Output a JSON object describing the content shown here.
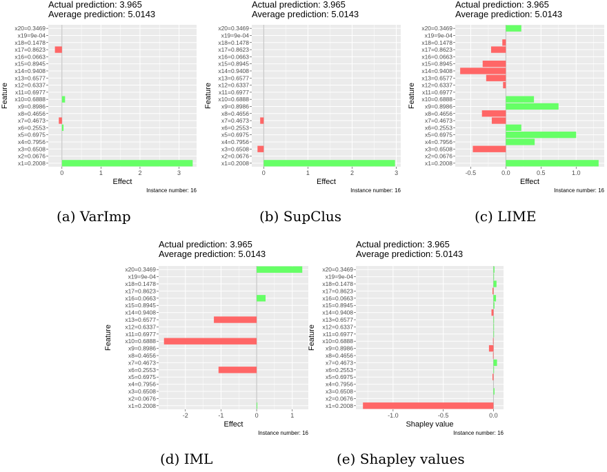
{
  "chart_data": [
    {
      "id": "a",
      "type": "bar",
      "title_lines": [
        "Actual prediction: 3.965",
        "Average prediction: 5.0143"
      ],
      "xlabel": "Effect",
      "ylabel": "Feature",
      "caption": "(a) VarImp",
      "instance_note": "Instance number: 16",
      "xlim": [
        -0.35,
        3.45
      ],
      "xticks": [
        0,
        1,
        2,
        3
      ],
      "xtick_labels": [
        "0",
        "1",
        "2",
        "3"
      ],
      "categories": [
        "x1=0.2008",
        "x2=0.0676",
        "x3=0.6508",
        "x4=0.7956",
        "x5=0.6975",
        "x6=0.2553",
        "x7=0.4673",
        "x8=0.4656",
        "x9=0.8986",
        "x10=0.6888",
        "x11=0.6977",
        "x12=0.6337",
        "x13=0.6577",
        "x14=0.9408",
        "x15=0.8945",
        "x16=0.0663",
        "x17=0.8623",
        "x18=0.1478",
        "x19=9e-04",
        "x20=0.3469"
      ],
      "values": [
        3.35,
        0,
        0,
        0,
        0,
        0.04,
        -0.08,
        0,
        0,
        0.08,
        0,
        0,
        0,
        0,
        0,
        0,
        -0.18,
        0,
        0,
        0
      ]
    },
    {
      "id": "b",
      "type": "bar",
      "title_lines": [
        "Actual prediction: 3.965",
        "Average prediction: 5.0143"
      ],
      "xlabel": "Effect",
      "ylabel": "Feature",
      "caption": "(b) SupClus",
      "instance_note": "Instance number: 16",
      "xlim": [
        -0.27,
        3.1
      ],
      "xticks": [
        0,
        1,
        2,
        3
      ],
      "xtick_labels": [
        "0",
        "1",
        "2",
        "3"
      ],
      "categories": [
        "x1=0.2008",
        "x2=0.0676",
        "x3=0.6508",
        "x4=0.7956",
        "x5=0.6975",
        "x6=0.2553",
        "x7=0.4673",
        "x8=0.4656",
        "x9=0.8986",
        "x10=0.6888",
        "x11=0.6977",
        "x12=0.6337",
        "x13=0.6577",
        "x14=0.9408",
        "x15=0.8945",
        "x16=0.0663",
        "x17=0.8623",
        "x18=0.1478",
        "x19=9e-04",
        "x20=0.3469"
      ],
      "values": [
        2.97,
        0,
        -0.14,
        0,
        0,
        0,
        -0.08,
        0,
        0,
        0,
        0,
        0,
        0,
        0,
        0,
        0,
        0,
        0,
        0,
        0
      ]
    },
    {
      "id": "c",
      "type": "bar",
      "title_lines": [
        "Actual prediction: 3.965",
        "Average prediction: 5.0143"
      ],
      "xlabel": "Effect",
      "ylabel": "Feature",
      "caption": "(c) LIME",
      "instance_note": "Instance number: 16",
      "xlim": [
        -0.72,
        1.4
      ],
      "xticks": [
        -0.5,
        0,
        0.5,
        1.0
      ],
      "xtick_labels": [
        "-0.5",
        "0.0",
        "0.5",
        "1.0"
      ],
      "categories": [
        "x1=0.2008",
        "x2=0.0676",
        "x3=0.6508",
        "x4=0.7956",
        "x5=0.6975",
        "x6=0.2553",
        "x7=0.4673",
        "x8=0.4656",
        "x9=0.8986",
        "x10=0.6888",
        "x11=0.6977",
        "x12=0.6337",
        "x13=0.6577",
        "x14=0.9408",
        "x15=0.8945",
        "x16=0.0663",
        "x17=0.8623",
        "x18=0.1478",
        "x19=9e-04",
        "x20=0.3469"
      ],
      "values": [
        1.32,
        0,
        -0.47,
        0.41,
        1.0,
        0.22,
        -0.2,
        -0.34,
        0.75,
        0.4,
        0,
        -0.04,
        -0.28,
        -0.65,
        -0.33,
        0,
        -0.21,
        -0.05,
        0,
        0.22
      ]
    },
    {
      "id": "d",
      "type": "bar",
      "title_lines": [
        "Actual prediction: 3.965",
        "Average prediction: 5.0143"
      ],
      "xlabel": "Effect",
      "ylabel": "Feature",
      "caption": "(d) IML",
      "instance_note": "Instance number: 16",
      "xlim": [
        -2.75,
        1.45
      ],
      "xticks": [
        -2,
        -1,
        0,
        1
      ],
      "xtick_labels": [
        "-2",
        "-1",
        "0",
        "1"
      ],
      "categories": [
        "x1=0.2008",
        "x2=0.0676",
        "x3=0.6508",
        "x4=0.7956",
        "x5=0.6975",
        "x6=0.2553",
        "x7=0.4673",
        "x8=0.4656",
        "x9=0.8986",
        "x10=0.6888",
        "x11=0.6977",
        "x12=0.6337",
        "x13=0.6577",
        "x14=0.9408",
        "x15=0.8945",
        "x16=0.0663",
        "x17=0.8623",
        "x18=0.1478",
        "x19=9e-04",
        "x20=0.3469"
      ],
      "values": [
        0.02,
        0,
        0,
        0,
        0,
        -1.07,
        0,
        0,
        0,
        -2.6,
        0,
        0,
        -1.2,
        0,
        0,
        0.25,
        0,
        0,
        0,
        1.28
      ]
    },
    {
      "id": "e",
      "type": "bar",
      "title_lines": [
        "Actual prediction: 3.965",
        "Average prediction: 5.0143"
      ],
      "xlabel": "Shapley value",
      "ylabel": "Feature",
      "caption": "(e) Shapley values",
      "instance_note": "Instance number: 16",
      "xlim": [
        -1.37,
        0.1
      ],
      "xticks": [
        -1.0,
        -0.5,
        0.0
      ],
      "xtick_labels": [
        "-1.0",
        "-0.5",
        "0.0"
      ],
      "categories": [
        "x1=0.2008",
        "x2=0.0676",
        "x3=0.6508",
        "x4=0.7956",
        "x5=0.6975",
        "x6=0.2553",
        "x7=0.4673",
        "x8=0.4656",
        "x9=0.8986",
        "x10=0.6888",
        "x11=0.6977",
        "x12=0.6337",
        "x13=0.6577",
        "x14=0.9408",
        "x15=0.8945",
        "x16=0.0663",
        "x17=0.8623",
        "x18=0.1478",
        "x19=9e-04",
        "x20=0.3469"
      ],
      "values": [
        -1.3,
        0,
        0.01,
        0,
        -0.01,
        0.005,
        0.035,
        -0.005,
        -0.045,
        -0.005,
        0.005,
        0.005,
        0.005,
        -0.02,
        0.01,
        0.025,
        -0.01,
        0.03,
        0.005,
        0.01
      ]
    }
  ],
  "colors": {
    "positive": "#66ff66",
    "negative": "#ff6666",
    "panel_bg": "#ebebeb",
    "grid_major": "#ffffff",
    "zero_line": "#bdbdbd"
  }
}
